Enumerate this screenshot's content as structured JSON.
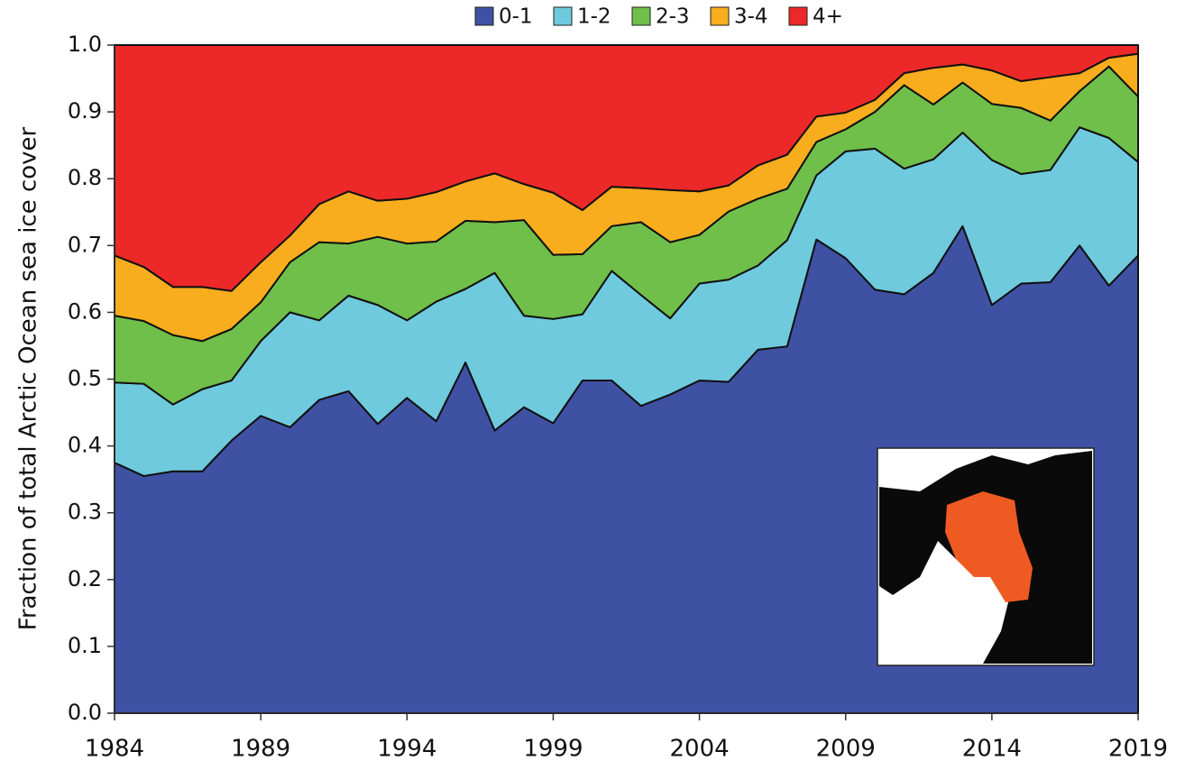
{
  "chart_data": {
    "type": "stacked_area",
    "y_label": "Fraction of total Arctic Ocean sea ice cover",
    "x": [
      1984,
      1985,
      1986,
      1987,
      1988,
      1989,
      1990,
      1991,
      1992,
      1993,
      1994,
      1995,
      1996,
      1997,
      1998,
      1999,
      2000,
      2001,
      2002,
      2003,
      2004,
      2005,
      2006,
      2007,
      2008,
      2009,
      2010,
      2011,
      2012,
      2013,
      2014,
      2015,
      2016,
      2017,
      2018,
      2019
    ],
    "xlim": [
      1984,
      2019
    ],
    "xticks": [
      1984,
      1989,
      1994,
      1999,
      2004,
      2009,
      2014,
      2019
    ],
    "ylim": [
      0,
      1
    ],
    "yticks": [
      {
        "value": 0,
        "label": "0.0"
      },
      0.1,
      0.2,
      0.3,
      0.4,
      0.5,
      0.6,
      0.7,
      0.8,
      0.9,
      {
        "value": 1,
        "label": "1.0"
      }
    ],
    "legend": "top",
    "series": [
      {
        "name": "0-1",
        "color": "#3f51a3",
        "values": [
          0.375,
          0.355,
          0.362,
          0.362,
          0.408,
          0.445,
          0.428,
          0.469,
          0.482,
          0.433,
          0.472,
          0.437,
          0.525,
          0.423,
          0.458,
          0.434,
          0.498,
          0.498,
          0.46,
          0.477,
          0.498,
          0.496,
          0.544,
          0.549,
          0.709,
          0.681,
          0.634,
          0.627,
          0.659,
          0.729,
          0.611,
          0.643,
          0.645,
          0.7,
          0.64,
          0.685
        ]
      },
      {
        "name": "1-2",
        "color": "#6fcade",
        "values": [
          0.12,
          0.138,
          0.1,
          0.123,
          0.09,
          0.112,
          0.172,
          0.119,
          0.143,
          0.178,
          0.116,
          0.179,
          0.11,
          0.236,
          0.137,
          0.156,
          0.099,
          0.164,
          0.166,
          0.114,
          0.145,
          0.153,
          0.126,
          0.159,
          0.096,
          0.16,
          0.211,
          0.188,
          0.17,
          0.14,
          0.217,
          0.164,
          0.168,
          0.177,
          0.221,
          0.14
        ]
      },
      {
        "name": "2-3",
        "color": "#6fbf4a",
        "values": [
          0.1,
          0.094,
          0.104,
          0.072,
          0.077,
          0.058,
          0.075,
          0.117,
          0.078,
          0.102,
          0.115,
          0.09,
          0.102,
          0.076,
          0.143,
          0.096,
          0.09,
          0.067,
          0.109,
          0.114,
          0.073,
          0.102,
          0.1,
          0.077,
          0.05,
          0.033,
          0.055,
          0.125,
          0.082,
          0.075,
          0.084,
          0.099,
          0.074,
          0.054,
          0.107,
          0.098
        ]
      },
      {
        "name": "3-4",
        "color": "#f7ad1e",
        "values": [
          0.09,
          0.081,
          0.072,
          0.081,
          0.057,
          0.06,
          0.04,
          0.057,
          0.078,
          0.054,
          0.067,
          0.074,
          0.059,
          0.073,
          0.054,
          0.093,
          0.066,
          0.059,
          0.051,
          0.078,
          0.065,
          0.039,
          0.05,
          0.051,
          0.038,
          0.025,
          0.018,
          0.018,
          0.055,
          0.027,
          0.05,
          0.04,
          0.065,
          0.027,
          0.013,
          0.064
        ]
      },
      {
        "name": "4+",
        "color": "#ec2828",
        "values": [
          0.315,
          0.332,
          0.362,
          0.362,
          0.368,
          0.325,
          0.285,
          0.238,
          0.219,
          0.233,
          0.23,
          0.22,
          0.204,
          0.192,
          0.208,
          0.221,
          0.247,
          0.212,
          0.214,
          0.217,
          0.219,
          0.21,
          0.18,
          0.164,
          0.107,
          0.101,
          0.082,
          0.042,
          0.034,
          0.029,
          0.038,
          0.054,
          0.048,
          0.042,
          0.019,
          0.013
        ]
      }
    ]
  }
}
